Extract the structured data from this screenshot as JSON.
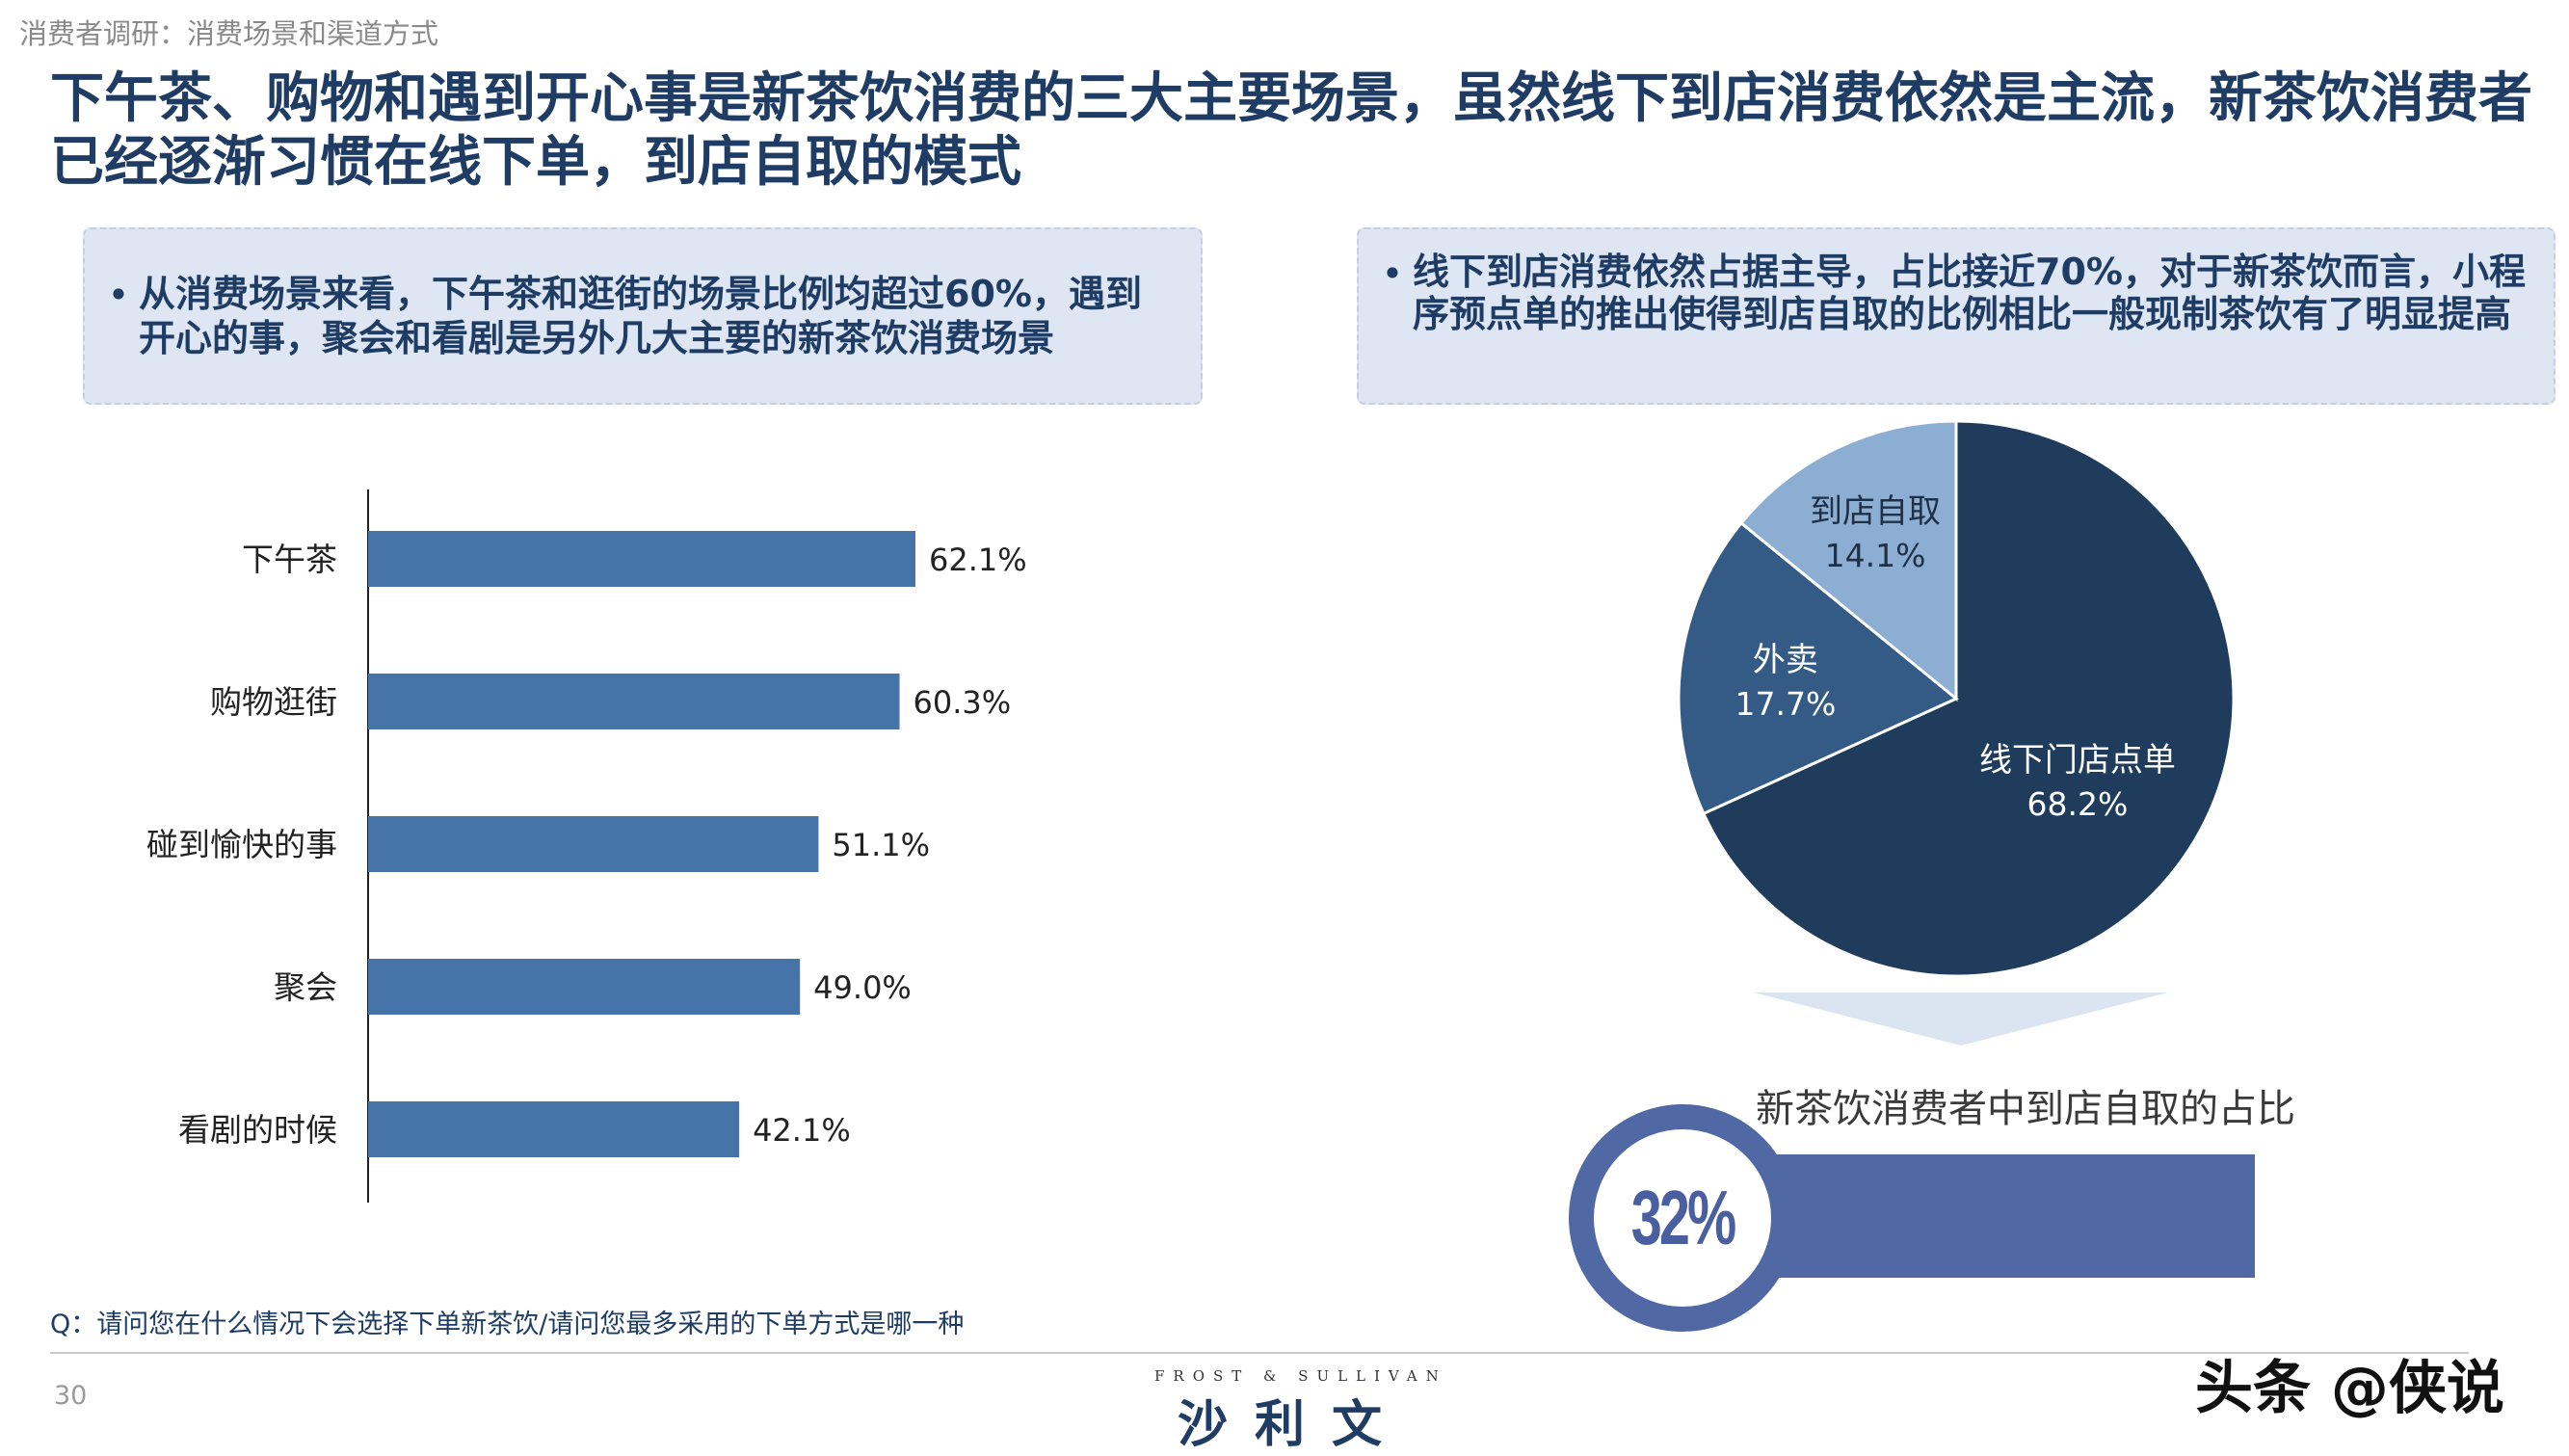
{
  "breadcrumb": "消费者调研：消费场景和渠道方式",
  "headline": "下午茶、购物和遇到开心事是新茶饮消费的三大主要场景，虽然线下到店消费依然是主流，新茶饮消费者已经逐渐习惯在线下单，到店自取的模式",
  "left_callout": {
    "bullet": "•",
    "text": "从消费场景来看，下午茶和逛街的场景比例均超过60%，遇到开心的事，聚会和看剧是另外几大主要的新茶饮消费场景"
  },
  "right_callout": {
    "bullet": "•",
    "text": "线下到店消费依然占据主导，占比接近70%，对于新茶饮而言，小程序预点单的推出使得到店自取的比例相比一般现制茶饮有了明显提高"
  },
  "chart_data": [
    {
      "type": "bar",
      "orientation": "horizontal",
      "categories": [
        "下午茶",
        "购物逛街",
        "碰到愉快的事",
        "聚会",
        "看剧的时候"
      ],
      "values": [
        62.1,
        60.3,
        51.1,
        49.0,
        42.1
      ],
      "data_labels": [
        "62.1%",
        "60.3%",
        "51.1%",
        "49.0%",
        "42.1%"
      ],
      "unit": "%",
      "xlim": [
        0,
        100
      ],
      "grid": false,
      "bar_color": "#4674a8"
    },
    {
      "type": "pie",
      "slices": [
        {
          "label": "线下门店点单",
          "value": 68.2,
          "value_label": "68.2%",
          "color": "#1f3c5c"
        },
        {
          "label": "外卖",
          "value": 17.7,
          "value_label": "17.7%",
          "color": "#335b85"
        },
        {
          "label": "到店自取",
          "value": 14.1,
          "value_label": "14.1%",
          "color": "#8caed2"
        }
      ]
    }
  ],
  "highlight": {
    "caption": "新茶饮消费者中到店自取的占比",
    "value": "32%",
    "percent": 32,
    "bar_color": "#5068a4",
    "ring_color": "#5068a4",
    "chevron_color": "#dbe5f1"
  },
  "question": "Q：请问您在什么情况下会选择下单新茶饮/请问您最多采用的下单方式是哪一种",
  "page_number": "30",
  "logo": {
    "en": "FROST & SULLIVAN",
    "cn": "沙利文"
  },
  "watermark": "头条 @侠说"
}
